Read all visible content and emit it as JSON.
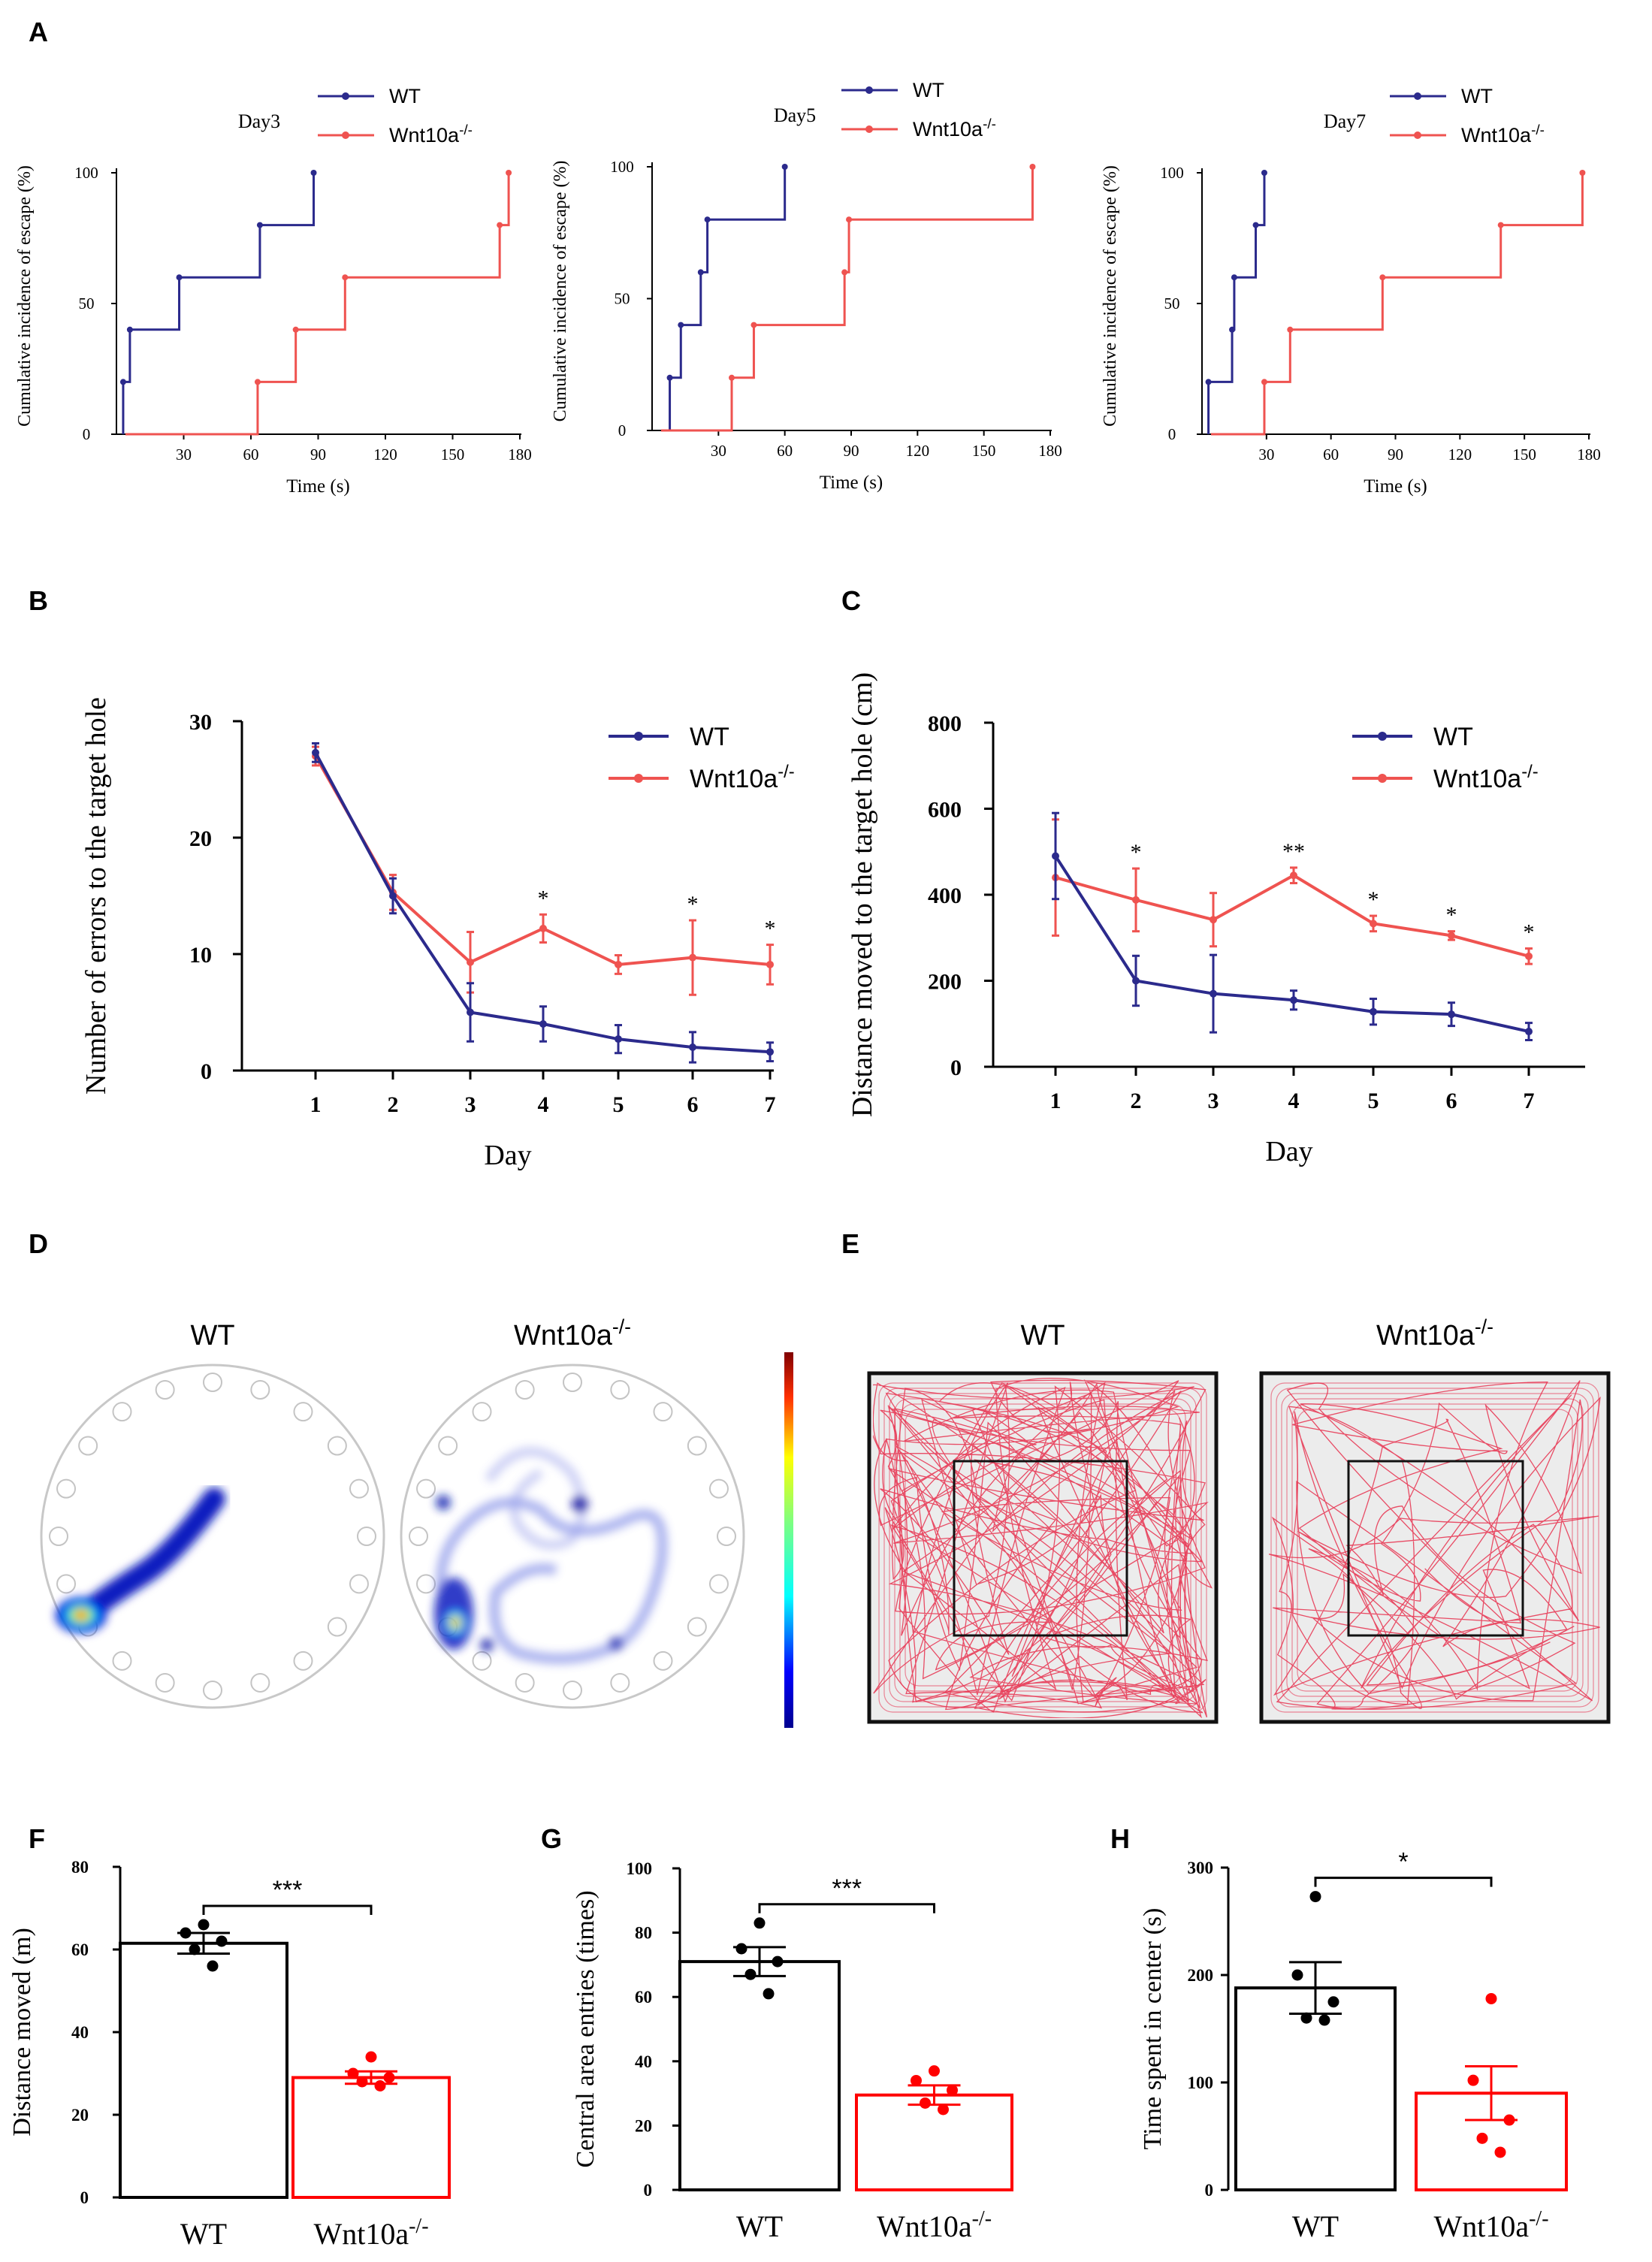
{
  "figure": {
    "panel_labels": [
      "A",
      "B",
      "C",
      "D",
      "E",
      "F",
      "G",
      "H"
    ]
  },
  "colors": {
    "wt_line": "#2b2a8c",
    "ko_line": "#ef5350",
    "wt_bar": "#000000",
    "ko_bar": "#ff0000"
  },
  "chart_data": [
    {
      "id": "A1",
      "type": "line",
      "step": true,
      "title": "Day3",
      "xlabel": "Time (s)",
      "ylabel": "Cumulative incidence of escape (%)",
      "xlim": [
        0,
        180
      ],
      "ylim": [
        0,
        100
      ],
      "xticks": [
        "30",
        "90",
        "150",
        "60",
        "120",
        "180"
      ],
      "yticks": [
        "0",
        "50",
        "100"
      ],
      "legend": [
        "WT",
        "Wnt10a-/-"
      ],
      "series": [
        {
          "name": "WT",
          "x": [
            3,
            6,
            28,
            64,
            88
          ],
          "y": [
            20,
            40,
            60,
            80,
            100
          ]
        },
        {
          "name": "Wnt10a-/-",
          "x": [
            63,
            80,
            102,
            171,
            175
          ],
          "y": [
            20,
            40,
            60,
            80,
            100
          ]
        }
      ]
    },
    {
      "id": "A2",
      "type": "line",
      "step": true,
      "title": "Day5",
      "xlabel": "Time (s)",
      "ylabel": "Cumulative incidence of escape (%)",
      "xlim": [
        0,
        180
      ],
      "ylim": [
        0,
        100
      ],
      "xticks": [
        "30",
        "90",
        "150",
        "60",
        "120",
        "180"
      ],
      "yticks": [
        "0",
        "50",
        "100"
      ],
      "legend": [
        "WT",
        "Wnt10a-/-"
      ],
      "series": [
        {
          "name": "WT",
          "x": [
            8,
            13,
            22,
            25,
            60
          ],
          "y": [
            20,
            40,
            60,
            80,
            100
          ]
        },
        {
          "name": "Wnt10a-/-",
          "x": [
            36,
            46,
            87,
            89,
            172
          ],
          "y": [
            20,
            40,
            60,
            80,
            100
          ]
        }
      ]
    },
    {
      "id": "A3",
      "type": "line",
      "step": true,
      "title": "Day7",
      "xlabel": "Time (s)",
      "ylabel": "Cumulative incidence of escape (%)",
      "xlim": [
        0,
        180
      ],
      "ylim": [
        0,
        100
      ],
      "xticks": [
        "30",
        "90",
        "150",
        "60",
        "120",
        "180"
      ],
      "yticks": [
        "0",
        "50",
        "100"
      ],
      "legend": [
        "WT",
        "Wnt10a-/-"
      ],
      "series": [
        {
          "name": "WT",
          "x": [
            3,
            14,
            15,
            25,
            29
          ],
          "y": [
            20,
            40,
            60,
            80,
            100
          ]
        },
        {
          "name": "Wnt10a-/-",
          "x": [
            29,
            41,
            84,
            139,
            177
          ],
          "y": [
            20,
            40,
            60,
            80,
            100
          ]
        }
      ]
    },
    {
      "id": "B",
      "type": "line",
      "xlabel": "Day",
      "ylabel": "Number of errors to the target hole",
      "categories": [
        "1",
        "2",
        "3",
        "4",
        "5",
        "6",
        "7"
      ],
      "ylim": [
        0,
        30
      ],
      "yticks": [
        "0",
        "10",
        "20",
        "30"
      ],
      "legend": [
        "WT",
        "Wnt10a-/-"
      ],
      "series": [
        {
          "name": "WT",
          "values": [
            27.3,
            15.0,
            5.0,
            4.0,
            2.7,
            2.0,
            1.6
          ],
          "errors": [
            0.8,
            1.5,
            2.5,
            1.5,
            1.2,
            1.3,
            0.8
          ]
        },
        {
          "name": "Wnt10a-/-",
          "values": [
            27.0,
            15.3,
            9.3,
            12.2,
            9.1,
            9.7,
            9.1
          ],
          "errors": [
            0.8,
            1.5,
            2.6,
            1.2,
            0.8,
            3.2,
            1.7
          ]
        }
      ],
      "annotations": [
        {
          "day": "4",
          "text": "*"
        },
        {
          "day": "6",
          "text": "*"
        },
        {
          "day": "7",
          "text": "*"
        }
      ]
    },
    {
      "id": "C",
      "type": "line",
      "xlabel": "Day",
      "ylabel": "Distance moved to the target hole (cm)",
      "categories": [
        "1",
        "2",
        "3",
        "4",
        "5",
        "6",
        "7"
      ],
      "ylim": [
        0,
        800
      ],
      "yticks": [
        "0",
        "200",
        "400",
        "600",
        "800"
      ],
      "legend": [
        "WT",
        "Wnt10a-/-"
      ],
      "series": [
        {
          "name": "WT",
          "values": [
            490,
            200,
            170,
            155,
            128,
            122,
            82
          ],
          "errors": [
            100,
            58,
            90,
            22,
            30,
            27,
            20
          ]
        },
        {
          "name": "Wnt10a-/-",
          "values": [
            440,
            388,
            342,
            445,
            333,
            305,
            257
          ],
          "errors": [
            135,
            73,
            62,
            18,
            18,
            10,
            18
          ]
        }
      ],
      "annotations": [
        {
          "day": "2",
          "text": "*"
        },
        {
          "day": "4",
          "text": "**"
        },
        {
          "day": "5",
          "text": "*"
        },
        {
          "day": "6",
          "text": "*"
        },
        {
          "day": "7",
          "text": "*"
        }
      ]
    },
    {
      "id": "F",
      "type": "bar",
      "ylabel": "Distance moved (m)",
      "categories": [
        "WT",
        "Wnt10a-/-"
      ],
      "values": [
        61.5,
        29.0
      ],
      "errors": [
        2.5,
        1.5
      ],
      "points": [
        [
          66,
          64,
          62,
          60,
          56
        ],
        [
          34,
          30,
          29,
          28,
          27
        ]
      ],
      "ylim": [
        0,
        80
      ],
      "yticks": [
        "0",
        "20",
        "40",
        "60",
        "80"
      ],
      "significance": "***"
    },
    {
      "id": "G",
      "type": "bar",
      "ylabel": "Central area entries (times)",
      "categories": [
        "WT",
        "Wnt10a-/-"
      ],
      "values": [
        71.0,
        29.5
      ],
      "errors": [
        4.5,
        3.0
      ],
      "points": [
        [
          83,
          75,
          71,
          67,
          61
        ],
        [
          37,
          34,
          31,
          27,
          25
        ]
      ],
      "ylim": [
        0,
        100
      ],
      "yticks": [
        "0",
        "20",
        "40",
        "60",
        "80",
        "100"
      ],
      "significance": "***"
    },
    {
      "id": "H",
      "type": "bar",
      "ylabel": "Time spent in center (s)",
      "categories": [
        "WT",
        "Wnt10a-/-"
      ],
      "values": [
        188,
        90
      ],
      "errors": [
        24,
        25
      ],
      "points": [
        [
          273,
          200,
          175,
          160,
          158
        ],
        [
          178,
          102,
          65,
          48,
          35
        ]
      ],
      "ylim": [
        0,
        300
      ],
      "yticks": [
        "0",
        "100",
        "200",
        "300"
      ],
      "significance": "*"
    }
  ],
  "panel_D": {
    "title_wt": "WT",
    "title_ko": "Wnt10a-/-"
  },
  "panel_E": {
    "title_wt": "WT",
    "title_ko": "Wnt10a-/-"
  }
}
